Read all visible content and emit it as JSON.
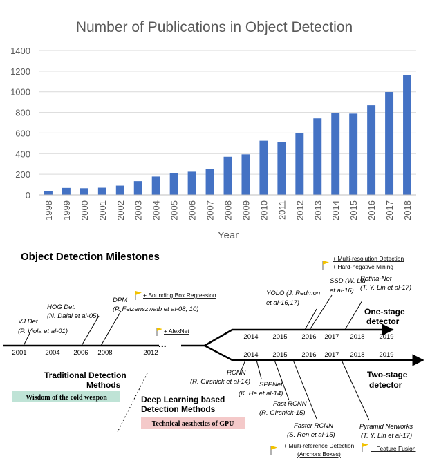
{
  "chart_data": {
    "type": "bar",
    "title": "Number of Publications in Object Detection",
    "xlabel": "Year",
    "ylabel": "",
    "ylim": [
      0,
      1400
    ],
    "yticks": [
      0,
      200,
      400,
      600,
      800,
      1000,
      1200,
      1400
    ],
    "grid": true,
    "bar_color": "#4472C4",
    "categories": [
      "1998",
      "1999",
      "2000",
      "2001",
      "2002",
      "2003",
      "2004",
      "2005",
      "2006",
      "2007",
      "2008",
      "2009",
      "2010",
      "2011",
      "2012",
      "2013",
      "2014",
      "2015",
      "2016",
      "2017",
      "2018"
    ],
    "values": [
      35,
      68,
      65,
      70,
      90,
      133,
      178,
      208,
      225,
      248,
      370,
      393,
      525,
      515,
      600,
      742,
      795,
      788,
      870,
      998,
      1160
    ]
  },
  "milestones": {
    "title": "Object Detection Milestones",
    "traditional_years": [
      "2001",
      "2004",
      "2006",
      "2008",
      "2012"
    ],
    "ellipsis": "...",
    "one_stage_years": [
      "2014",
      "2015",
      "2016",
      "2017",
      "2018",
      "2019"
    ],
    "two_stage_years": [
      "2014",
      "2015",
      "2016",
      "2017",
      "2018",
      "2019"
    ],
    "one_stage_label": [
      "One-stage",
      "detector"
    ],
    "two_stage_label": [
      "Two-stage",
      "detector"
    ],
    "traditional_label": [
      "Traditional Detection",
      "Methods"
    ],
    "deep_label": [
      "Deep Learning based",
      "Detection Methods"
    ],
    "wisdom_box": "Wisdom of the cold weapon",
    "gpu_box": "Technical aesthetics of GPU",
    "colors": {
      "wisdom_bg": "#BFE3D6",
      "gpu_bg": "#F4C9C9",
      "flag": "#F2C200"
    },
    "methods": {
      "vj": [
        "VJ Det.",
        "(P. Viola et al-01)"
      ],
      "hog": [
        "HOG Det.",
        "(N. Dalal et al-05)"
      ],
      "dpm": [
        "DPM",
        "(P. Felzenszwalb et al-08, 10)"
      ],
      "rcnn": [
        "RCNN",
        "(R. Girshick et al-14)"
      ],
      "sppnet": [
        "SPPNet",
        "(K. He et al-14)"
      ],
      "fast_rcnn": [
        "Fast RCNN",
        "(R. Girshick-15)"
      ],
      "faster_rcnn": [
        "Faster RCNN",
        "(S. Ren et al-15)"
      ],
      "fpn": [
        "Pyramid Networks",
        "(T. Y. Lin et al-17)"
      ],
      "yolo": [
        "YOLO (J. Redmon",
        "et al-16,17)"
      ],
      "ssd": [
        "SSD (W. Liu",
        "et al-16)"
      ],
      "retina": [
        "Retina-Net",
        "(T. Y. Lin et al-17)"
      ]
    },
    "notes": {
      "bbox_regression": "+ Bounding Box Regression",
      "alexnet": "+ AlexNet",
      "multi_resolution": "+ Multi-resolution Detection",
      "hard_negative": "+ Hard-negative Mining",
      "multi_reference": "+ Multi-reference Detection",
      "anchor_boxes": "(Anchors Boxes)",
      "feature_fusion": "+ Feature Fusion"
    }
  }
}
